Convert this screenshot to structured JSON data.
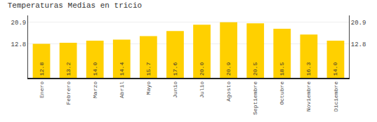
{
  "chart_data": {
    "type": "bar",
    "title": "Temperaturas Medias en tricio",
    "categories": [
      "Enero",
      "Febrero",
      "Marzo",
      "Abril",
      "Mayo",
      "Junio",
      "Julio",
      "Agosto",
      "Septiembre",
      "Octubre",
      "Noviembre",
      "Diciembre"
    ],
    "values": [
      12.8,
      13.2,
      14.0,
      14.4,
      15.7,
      17.6,
      20.0,
      20.9,
      20.5,
      18.5,
      16.3,
      14.0
    ],
    "value_labels": [
      "12.8",
      "13.2",
      "14.0",
      "14.4",
      "15.7",
      "17.6",
      "20.0",
      "20.9",
      "20.5",
      "18.5",
      "16.3",
      "14.0"
    ],
    "color": "#FFD000",
    "ylim": [
      0.0,
      23.5
    ],
    "yticks": [
      12.8,
      20.9
    ],
    "y2lim": [
      0.0,
      23.5
    ],
    "y2ticks": [
      12.8,
      20.9
    ],
    "grid": true,
    "data_labels": true
  }
}
